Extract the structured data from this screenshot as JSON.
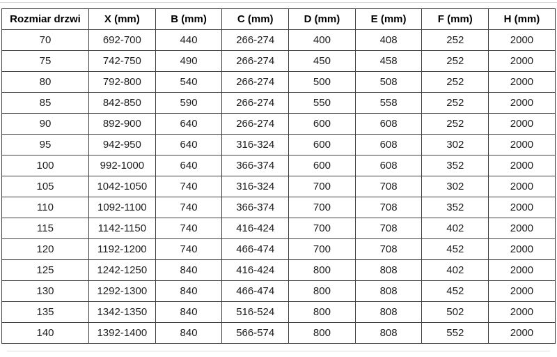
{
  "table": {
    "columns": [
      "Rozmiar drzwi",
      "X (mm)",
      "B (mm)",
      "C (mm)",
      "D (mm)",
      "E (mm)",
      "F (mm)",
      "H (mm)"
    ],
    "rows": [
      [
        "70",
        "692-700",
        "440",
        "266-274",
        "400",
        "408",
        "252",
        "2000"
      ],
      [
        "75",
        "742-750",
        "490",
        "266-274",
        "450",
        "458",
        "252",
        "2000"
      ],
      [
        "80",
        "792-800",
        "540",
        "266-274",
        "500",
        "508",
        "252",
        "2000"
      ],
      [
        "85",
        "842-850",
        "590",
        "266-274",
        "550",
        "558",
        "252",
        "2000"
      ],
      [
        "90",
        "892-900",
        "640",
        "266-274",
        "600",
        "608",
        "252",
        "2000"
      ],
      [
        "95",
        "942-950",
        "640",
        "316-324",
        "600",
        "608",
        "302",
        "2000"
      ],
      [
        "100",
        "992-1000",
        "640",
        "366-374",
        "600",
        "608",
        "352",
        "2000"
      ],
      [
        "105",
        "1042-1050",
        "740",
        "316-324",
        "700",
        "708",
        "302",
        "2000"
      ],
      [
        "110",
        "1092-1100",
        "740",
        "366-374",
        "700",
        "708",
        "352",
        "2000"
      ],
      [
        "115",
        "1142-1150",
        "740",
        "416-424",
        "700",
        "708",
        "402",
        "2000"
      ],
      [
        "120",
        "1192-1200",
        "740",
        "466-474",
        "700",
        "708",
        "452",
        "2000"
      ],
      [
        "125",
        "1242-1250",
        "840",
        "416-424",
        "800",
        "808",
        "402",
        "2000"
      ],
      [
        "130",
        "1292-1300",
        "840",
        "466-474",
        "800",
        "808",
        "452",
        "2000"
      ],
      [
        "135",
        "1342-1350",
        "840",
        "516-524",
        "800",
        "808",
        "502",
        "2000"
      ],
      [
        "140",
        "1392-1400",
        "840",
        "566-574",
        "800",
        "808",
        "552",
        "2000"
      ]
    ]
  },
  "chart_data": {
    "type": "table",
    "title": "",
    "columns": [
      "Rozmiar drzwi",
      "X (mm)",
      "B (mm)",
      "C (mm)",
      "D (mm)",
      "E (mm)",
      "F (mm)",
      "H (mm)"
    ],
    "rows": [
      [
        "70",
        "692-700",
        "440",
        "266-274",
        "400",
        "408",
        "252",
        "2000"
      ],
      [
        "75",
        "742-750",
        "490",
        "266-274",
        "450",
        "458",
        "252",
        "2000"
      ],
      [
        "80",
        "792-800",
        "540",
        "266-274",
        "500",
        "508",
        "252",
        "2000"
      ],
      [
        "85",
        "842-850",
        "590",
        "266-274",
        "550",
        "558",
        "252",
        "2000"
      ],
      [
        "90",
        "892-900",
        "640",
        "266-274",
        "600",
        "608",
        "252",
        "2000"
      ],
      [
        "95",
        "942-950",
        "640",
        "316-324",
        "600",
        "608",
        "302",
        "2000"
      ],
      [
        "100",
        "992-1000",
        "640",
        "366-374",
        "600",
        "608",
        "352",
        "2000"
      ],
      [
        "105",
        "1042-1050",
        "740",
        "316-324",
        "700",
        "708",
        "302",
        "2000"
      ],
      [
        "110",
        "1092-1100",
        "740",
        "366-374",
        "700",
        "708",
        "352",
        "2000"
      ],
      [
        "115",
        "1142-1150",
        "740",
        "416-424",
        "700",
        "708",
        "402",
        "2000"
      ],
      [
        "120",
        "1192-1200",
        "740",
        "466-474",
        "700",
        "708",
        "452",
        "2000"
      ],
      [
        "125",
        "1242-1250",
        "840",
        "416-424",
        "800",
        "808",
        "402",
        "2000"
      ],
      [
        "130",
        "1292-1300",
        "840",
        "466-474",
        "800",
        "808",
        "452",
        "2000"
      ],
      [
        "135",
        "1342-1350",
        "840",
        "516-524",
        "800",
        "808",
        "502",
        "2000"
      ],
      [
        "140",
        "1392-1400",
        "840",
        "566-574",
        "800",
        "808",
        "552",
        "2000"
      ]
    ]
  },
  "colors": {
    "border": "#3f3f3f",
    "text": "#1c1c1c",
    "header_text": "#000000",
    "background": "#ffffff"
  }
}
